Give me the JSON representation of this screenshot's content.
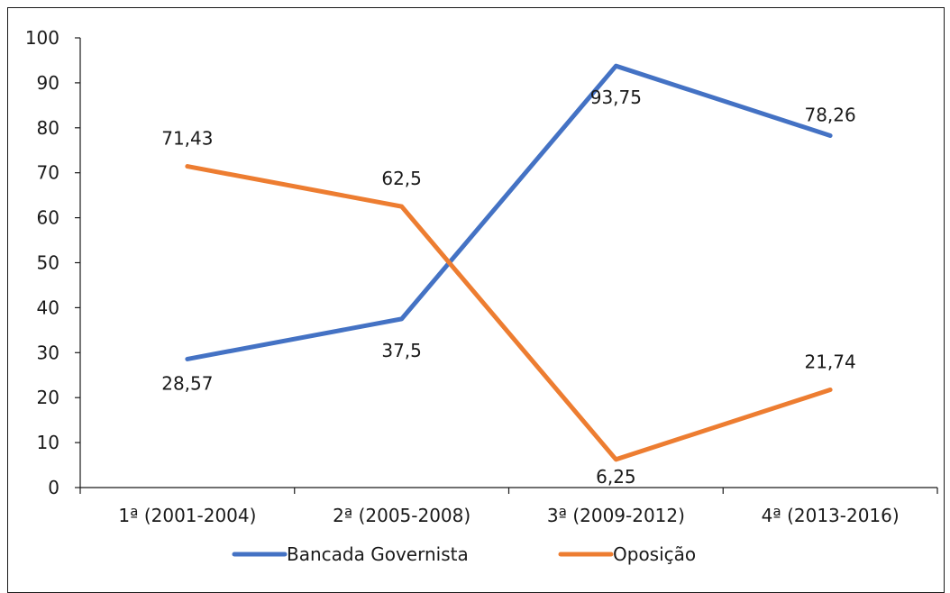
{
  "chart_data": {
    "type": "line",
    "title": "",
    "xlabel": "",
    "ylabel": "",
    "categories": [
      "1ª (2001-2004)",
      "2ª (2005-2008)",
      "3ª (2009-2012)",
      "4ª (2013-2016)"
    ],
    "ylim": [
      0,
      100
    ],
    "yticks": [
      0,
      10,
      20,
      30,
      40,
      50,
      60,
      70,
      80,
      90,
      100
    ],
    "grid": false,
    "legend_position": "bottom",
    "series": [
      {
        "name": "Bancada Governista",
        "color": "#4472C4",
        "values": [
          28.57,
          37.5,
          93.75,
          78.26
        ],
        "labels": [
          "28,57",
          "37,5",
          "93,75",
          "78,26"
        ]
      },
      {
        "name": "Oposição",
        "color": "#ED7D31",
        "values": [
          71.43,
          62.5,
          6.25,
          21.74
        ],
        "labels": [
          "71,43",
          "62,5",
          "6,25",
          "21,74"
        ]
      }
    ]
  }
}
